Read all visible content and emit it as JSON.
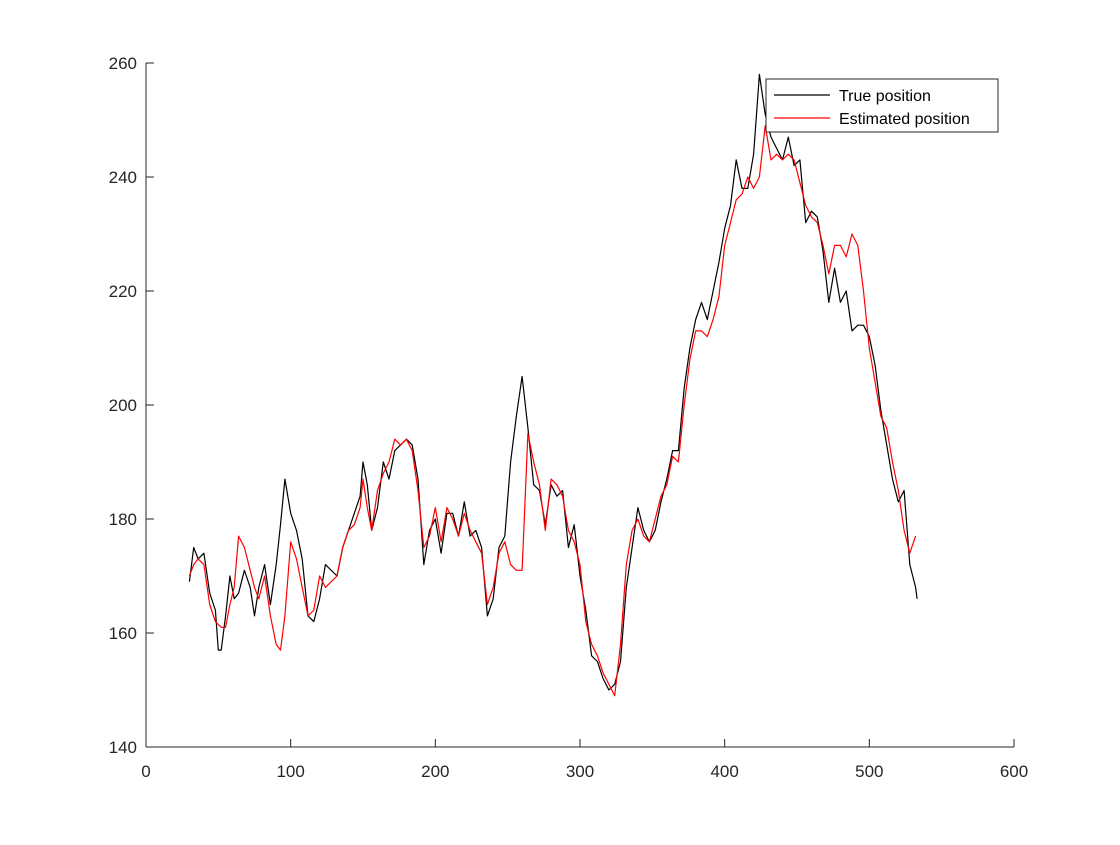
{
  "chart_data": {
    "type": "line",
    "title": "",
    "xlabel": "",
    "ylabel": "",
    "xlim": [
      0,
      600
    ],
    "ylim": [
      140,
      260
    ],
    "xticks": [
      "0",
      "100",
      "200",
      "300",
      "400",
      "500",
      "600"
    ],
    "yticks": [
      "140",
      "160",
      "180",
      "200",
      "220",
      "240",
      "260"
    ],
    "grid": false,
    "legend_position": "top-right",
    "series": [
      {
        "name": "True position",
        "color": "#000000",
        "points": [
          [
            30,
            169
          ],
          [
            33,
            175
          ],
          [
            36,
            173
          ],
          [
            40,
            174
          ],
          [
            44,
            167
          ],
          [
            48,
            164
          ],
          [
            50,
            157
          ],
          [
            52,
            157
          ],
          [
            55,
            163
          ],
          [
            58,
            170
          ],
          [
            61,
            166
          ],
          [
            64,
            167
          ],
          [
            68,
            171
          ],
          [
            72,
            168
          ],
          [
            75,
            163
          ],
          [
            78,
            168
          ],
          [
            82,
            172
          ],
          [
            86,
            165
          ],
          [
            90,
            172
          ],
          [
            93,
            179
          ],
          [
            96,
            187
          ],
          [
            100,
            181
          ],
          [
            104,
            178
          ],
          [
            108,
            173
          ],
          [
            112,
            163
          ],
          [
            116,
            162
          ],
          [
            120,
            166
          ],
          [
            124,
            172
          ],
          [
            128,
            171
          ],
          [
            132,
            170
          ],
          [
            136,
            175
          ],
          [
            140,
            178
          ],
          [
            144,
            181
          ],
          [
            148,
            184
          ],
          [
            150,
            190
          ],
          [
            153,
            186
          ],
          [
            156,
            178
          ],
          [
            160,
            182
          ],
          [
            164,
            190
          ],
          [
            168,
            187
          ],
          [
            172,
            192
          ],
          [
            176,
            193
          ],
          [
            180,
            194
          ],
          [
            184,
            193
          ],
          [
            188,
            187
          ],
          [
            192,
            172
          ],
          [
            196,
            178
          ],
          [
            200,
            180
          ],
          [
            204,
            174
          ],
          [
            208,
            181
          ],
          [
            212,
            181
          ],
          [
            216,
            177
          ],
          [
            220,
            183
          ],
          [
            224,
            177
          ],
          [
            228,
            178
          ],
          [
            232,
            175
          ],
          [
            236,
            163
          ],
          [
            240,
            166
          ],
          [
            244,
            175
          ],
          [
            248,
            177
          ],
          [
            252,
            190
          ],
          [
            256,
            198
          ],
          [
            260,
            205
          ],
          [
            264,
            196
          ],
          [
            268,
            186
          ],
          [
            272,
            185
          ],
          [
            276,
            179
          ],
          [
            280,
            186
          ],
          [
            284,
            184
          ],
          [
            288,
            185
          ],
          [
            292,
            175
          ],
          [
            296,
            179
          ],
          [
            300,
            170
          ],
          [
            304,
            164
          ],
          [
            308,
            156
          ],
          [
            312,
            155
          ],
          [
            316,
            152
          ],
          [
            320,
            150
          ],
          [
            324,
            151
          ],
          [
            328,
            155
          ],
          [
            332,
            168
          ],
          [
            336,
            175
          ],
          [
            340,
            182
          ],
          [
            344,
            178
          ],
          [
            348,
            176
          ],
          [
            352,
            178
          ],
          [
            356,
            183
          ],
          [
            360,
            187
          ],
          [
            364,
            192
          ],
          [
            368,
            192
          ],
          [
            372,
            203
          ],
          [
            376,
            210
          ],
          [
            380,
            215
          ],
          [
            384,
            218
          ],
          [
            388,
            215
          ],
          [
            392,
            220
          ],
          [
            396,
            225
          ],
          [
            400,
            231
          ],
          [
            404,
            235
          ],
          [
            408,
            243
          ],
          [
            412,
            238
          ],
          [
            416,
            238
          ],
          [
            420,
            244
          ],
          [
            424,
            258
          ],
          [
            428,
            251
          ],
          [
            432,
            247
          ],
          [
            436,
            245
          ],
          [
            440,
            243
          ],
          [
            444,
            247
          ],
          [
            448,
            242
          ],
          [
            452,
            243
          ],
          [
            456,
            232
          ],
          [
            460,
            234
          ],
          [
            464,
            233
          ],
          [
            468,
            227
          ],
          [
            472,
            218
          ],
          [
            476,
            224
          ],
          [
            480,
            218
          ],
          [
            484,
            220
          ],
          [
            488,
            213
          ],
          [
            492,
            214
          ],
          [
            496,
            214
          ],
          [
            500,
            212
          ],
          [
            504,
            207
          ],
          [
            508,
            199
          ],
          [
            512,
            193
          ],
          [
            516,
            187
          ],
          [
            520,
            183
          ],
          [
            524,
            185
          ],
          [
            528,
            172
          ],
          [
            532,
            168
          ],
          [
            533,
            166
          ]
        ]
      },
      {
        "name": "Estimated position",
        "color": "#ff0000",
        "points": [
          [
            30,
            170
          ],
          [
            33,
            172
          ],
          [
            36,
            173
          ],
          [
            40,
            172
          ],
          [
            44,
            165
          ],
          [
            48,
            162
          ],
          [
            52,
            161
          ],
          [
            55,
            161
          ],
          [
            58,
            165
          ],
          [
            61,
            168
          ],
          [
            64,
            177
          ],
          [
            68,
            175
          ],
          [
            72,
            171
          ],
          [
            75,
            168
          ],
          [
            78,
            166
          ],
          [
            82,
            170
          ],
          [
            86,
            163
          ],
          [
            90,
            158
          ],
          [
            93,
            157
          ],
          [
            96,
            163
          ],
          [
            100,
            176
          ],
          [
            104,
            173
          ],
          [
            108,
            168
          ],
          [
            112,
            163
          ],
          [
            116,
            164
          ],
          [
            120,
            170
          ],
          [
            124,
            168
          ],
          [
            128,
            169
          ],
          [
            132,
            170
          ],
          [
            136,
            175
          ],
          [
            140,
            178
          ],
          [
            144,
            179
          ],
          [
            148,
            182
          ],
          [
            150,
            187
          ],
          [
            153,
            182
          ],
          [
            156,
            178
          ],
          [
            160,
            185
          ],
          [
            164,
            188
          ],
          [
            168,
            190
          ],
          [
            172,
            194
          ],
          [
            176,
            193
          ],
          [
            180,
            194
          ],
          [
            184,
            192
          ],
          [
            188,
            185
          ],
          [
            192,
            175
          ],
          [
            196,
            177
          ],
          [
            200,
            182
          ],
          [
            204,
            176
          ],
          [
            208,
            182
          ],
          [
            212,
            180
          ],
          [
            216,
            177
          ],
          [
            220,
            181
          ],
          [
            224,
            178
          ],
          [
            228,
            176
          ],
          [
            232,
            174
          ],
          [
            236,
            165
          ],
          [
            240,
            168
          ],
          [
            244,
            174
          ],
          [
            248,
            176
          ],
          [
            252,
            172
          ],
          [
            256,
            171
          ],
          [
            260,
            171
          ],
          [
            264,
            195
          ],
          [
            268,
            190
          ],
          [
            272,
            186
          ],
          [
            276,
            178
          ],
          [
            280,
            187
          ],
          [
            284,
            186
          ],
          [
            288,
            184
          ],
          [
            292,
            178
          ],
          [
            296,
            176
          ],
          [
            300,
            172
          ],
          [
            304,
            162
          ],
          [
            308,
            158
          ],
          [
            312,
            156
          ],
          [
            316,
            153
          ],
          [
            320,
            151
          ],
          [
            324,
            149
          ],
          [
            328,
            158
          ],
          [
            332,
            172
          ],
          [
            336,
            178
          ],
          [
            340,
            180
          ],
          [
            344,
            177
          ],
          [
            348,
            176
          ],
          [
            352,
            180
          ],
          [
            356,
            184
          ],
          [
            360,
            186
          ],
          [
            364,
            191
          ],
          [
            368,
            190
          ],
          [
            372,
            200
          ],
          [
            376,
            208
          ],
          [
            380,
            213
          ],
          [
            384,
            213
          ],
          [
            388,
            212
          ],
          [
            392,
            215
          ],
          [
            396,
            219
          ],
          [
            400,
            228
          ],
          [
            404,
            232
          ],
          [
            408,
            236
          ],
          [
            412,
            237
          ],
          [
            416,
            240
          ],
          [
            420,
            238
          ],
          [
            424,
            240
          ],
          [
            428,
            249
          ],
          [
            432,
            243
          ],
          [
            436,
            244
          ],
          [
            440,
            243
          ],
          [
            444,
            244
          ],
          [
            448,
            243
          ],
          [
            452,
            239
          ],
          [
            456,
            235
          ],
          [
            460,
            233
          ],
          [
            464,
            232
          ],
          [
            468,
            228
          ],
          [
            472,
            223
          ],
          [
            476,
            228
          ],
          [
            480,
            228
          ],
          [
            484,
            226
          ],
          [
            488,
            230
          ],
          [
            492,
            228
          ],
          [
            496,
            220
          ],
          [
            500,
            210
          ],
          [
            504,
            204
          ],
          [
            508,
            198
          ],
          [
            512,
            196
          ],
          [
            516,
            190
          ],
          [
            520,
            185
          ],
          [
            524,
            178
          ],
          [
            528,
            174
          ],
          [
            532,
            177
          ]
        ]
      }
    ]
  }
}
